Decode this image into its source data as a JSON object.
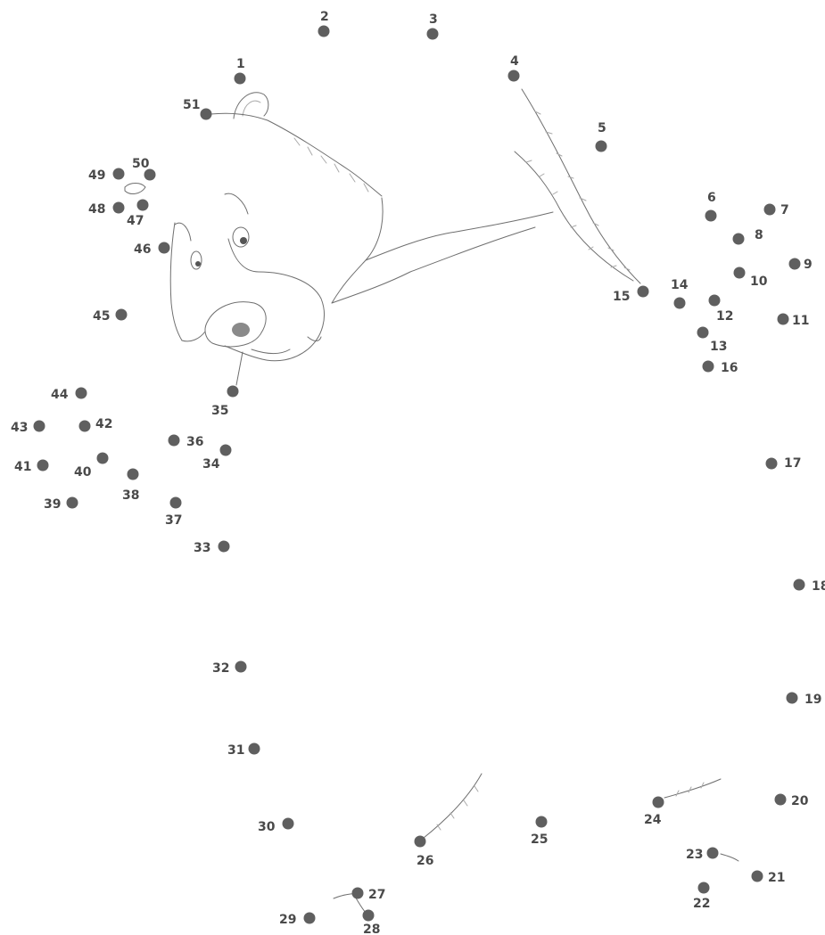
{
  "puzzle": {
    "dots": [
      {
        "n": "1"
      },
      {
        "n": "2"
      },
      {
        "n": "3"
      },
      {
        "n": "4"
      },
      {
        "n": "5"
      },
      {
        "n": "6"
      },
      {
        "n": "7"
      },
      {
        "n": "8"
      },
      {
        "n": "9"
      },
      {
        "n": "10"
      },
      {
        "n": "11"
      },
      {
        "n": "12"
      },
      {
        "n": "13"
      },
      {
        "n": "14"
      },
      {
        "n": "15"
      },
      {
        "n": "16"
      },
      {
        "n": "17"
      },
      {
        "n": "18"
      },
      {
        "n": "19"
      },
      {
        "n": "20"
      },
      {
        "n": "21"
      },
      {
        "n": "22"
      },
      {
        "n": "23"
      },
      {
        "n": "24"
      },
      {
        "n": "25"
      },
      {
        "n": "26"
      },
      {
        "n": "27"
      },
      {
        "n": "28"
      },
      {
        "n": "29"
      },
      {
        "n": "30"
      },
      {
        "n": "31"
      },
      {
        "n": "32"
      },
      {
        "n": "33"
      },
      {
        "n": "34"
      },
      {
        "n": "35"
      },
      {
        "n": "36"
      },
      {
        "n": "37"
      },
      {
        "n": "38"
      },
      {
        "n": "39"
      },
      {
        "n": "40"
      },
      {
        "n": "41"
      },
      {
        "n": "42"
      },
      {
        "n": "43"
      },
      {
        "n": "44"
      },
      {
        "n": "45"
      },
      {
        "n": "46"
      },
      {
        "n": "47"
      },
      {
        "n": "48"
      },
      {
        "n": "49"
      },
      {
        "n": "50"
      },
      {
        "n": "51"
      }
    ]
  },
  "colors": {
    "dot": "#5f5f5f",
    "label": "#4a4a4a",
    "sketch": "#6f6f6f"
  }
}
